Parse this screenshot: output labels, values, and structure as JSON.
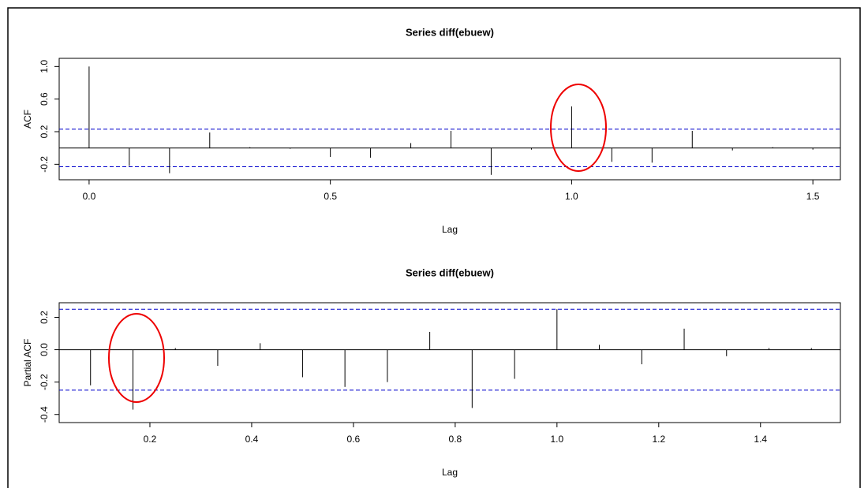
{
  "chart_data": [
    {
      "type": "acf",
      "title": "Series  diff(ebuew)",
      "x_label": "Lag",
      "y_label": "ACF",
      "x": [
        0,
        0.0833,
        0.1667,
        0.25,
        0.3333,
        0.4167,
        0.5,
        0.5833,
        0.6667,
        0.75,
        0.8333,
        0.9167,
        1,
        1.0833,
        1.1667,
        1.25,
        1.3333,
        1.4167,
        1.5
      ],
      "values": [
        1,
        -0.22,
        -0.31,
        0.19,
        0.01,
        -0.01,
        -0.11,
        -0.12,
        0.06,
        0.21,
        -0.33,
        -0.02,
        0.51,
        -0.17,
        -0.18,
        0.21,
        -0.03,
        0.01,
        -0.02
      ],
      "color": "#000000",
      "confidence_bounds": [
        0.23,
        -0.23
      ],
      "confidence_color": "#0000cc",
      "xlim": [
        -0.062,
        1.557
      ],
      "ylim": [
        -0.39,
        1.1
      ],
      "xticks": [
        {
          "value": 0,
          "label": "0.0"
        },
        0.5,
        {
          "value": 1,
          "label": "1.0"
        },
        1.5
      ],
      "yticks": [
        -0.2,
        0.2,
        0.6,
        {
          "value": 1,
          "label": "1.0"
        }
      ]
    },
    {
      "type": "acf",
      "title": "Series  diff(ebuew)",
      "x_label": "Lag",
      "y_label": "Partial ACF",
      "x": [
        0.0833,
        0.1667,
        0.25,
        0.3333,
        0.4167,
        0.5,
        0.5833,
        0.6667,
        0.75,
        0.8333,
        0.9167,
        1,
        1.0833,
        1.1667,
        1.25,
        1.3333,
        1.4167,
        1.5
      ],
      "values": [
        -0.22,
        -0.37,
        0.01,
        -0.1,
        0.04,
        -0.17,
        -0.23,
        -0.2,
        0.11,
        -0.36,
        -0.18,
        0.25,
        0.03,
        -0.09,
        0.13,
        -0.04,
        0.01,
        0.01
      ],
      "color": "#000000",
      "confidence_bounds": [
        0.25,
        -0.25
      ],
      "confidence_color": "#0000cc",
      "xlim": [
        0.0217,
        1.557
      ],
      "ylim": [
        -0.45,
        0.29
      ],
      "xticks": [
        0.2,
        0.4,
        0.6,
        0.8,
        {
          "value": 1,
          "label": "1.0"
        },
        1.2,
        1.4
      ],
      "yticks": [
        -0.4,
        -0.2,
        {
          "value": 0,
          "label": "0.0"
        },
        0.2
      ]
    }
  ]
}
